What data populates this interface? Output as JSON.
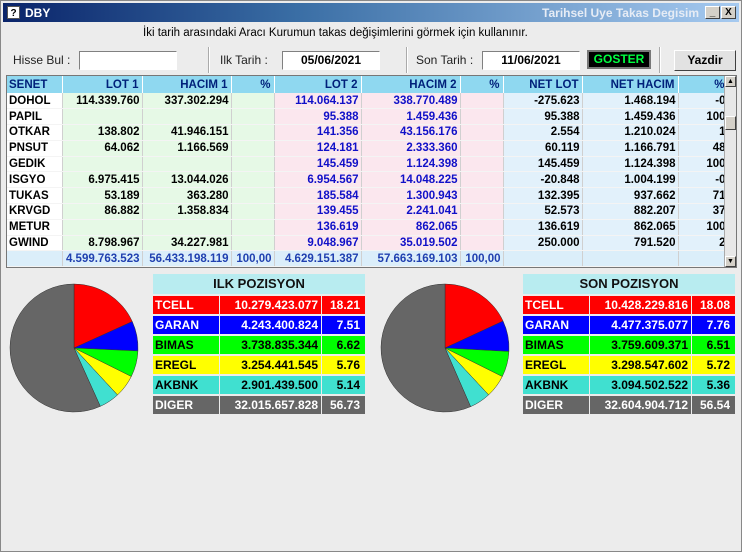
{
  "window": {
    "title": "DBY",
    "title_right": "Tarihsel Uye Takas Degisim",
    "min_glyph": "_",
    "close_glyph": "X",
    "app_icon": "?"
  },
  "hint": "İki tarih arasındaki  Aracı Kurumun takas değişimlerini görmek için kullanınır.",
  "controls": {
    "hisse_label": "Hisse Bul :",
    "hisse_value": "",
    "ilk_tarih_label": "Ilk Tarih :",
    "ilk_tarih_value": "05/06/2021",
    "son_tarih_label": "Son Tarih :",
    "son_tarih_value": "11/06/2021",
    "goster_label": "GOSTER",
    "yazdir_label": "Yazdir"
  },
  "table": {
    "headers": [
      "SENET",
      "LOT 1",
      "HACIM 1",
      "%",
      "LOT 2",
      "HACIM 2",
      "%",
      "NET LOT",
      "NET HACIM",
      "%"
    ],
    "rows": [
      {
        "senet": "DOHOL",
        "lot1": "114.339.760",
        "hacim1": "337.302.294",
        "p1": "",
        "lot2": "114.064.137",
        "hacim2": "338.770.489",
        "p2": "",
        "netlot": "-275.623",
        "nethacim": "1.468.194",
        "np": "-0"
      },
      {
        "senet": "PAPIL",
        "lot1": "",
        "hacim1": "",
        "p1": "",
        "lot2": "95.388",
        "hacim2": "1.459.436",
        "p2": "",
        "netlot": "95.388",
        "nethacim": "1.459.436",
        "np": "100"
      },
      {
        "senet": "OTKAR",
        "lot1": "138.802",
        "hacim1": "41.946.151",
        "p1": "",
        "lot2": "141.356",
        "hacim2": "43.156.176",
        "p2": "",
        "netlot": "2.554",
        "nethacim": "1.210.024",
        "np": "1"
      },
      {
        "senet": "PNSUT",
        "lot1": "64.062",
        "hacim1": "1.166.569",
        "p1": "",
        "lot2": "124.181",
        "hacim2": "2.333.360",
        "p2": "",
        "netlot": "60.119",
        "nethacim": "1.166.791",
        "np": "48"
      },
      {
        "senet": "GEDIK",
        "lot1": "",
        "hacim1": "",
        "p1": "",
        "lot2": "145.459",
        "hacim2": "1.124.398",
        "p2": "",
        "netlot": "145.459",
        "nethacim": "1.124.398",
        "np": "100"
      },
      {
        "senet": "ISGYO",
        "lot1": "6.975.415",
        "hacim1": "13.044.026",
        "p1": "",
        "lot2": "6.954.567",
        "hacim2": "14.048.225",
        "p2": "",
        "netlot": "-20.848",
        "nethacim": "1.004.199",
        "np": "-0"
      },
      {
        "senet": "TUKAS",
        "lot1": "53.189",
        "hacim1": "363.280",
        "p1": "",
        "lot2": "185.584",
        "hacim2": "1.300.943",
        "p2": "",
        "netlot": "132.395",
        "nethacim": "937.662",
        "np": "71"
      },
      {
        "senet": "KRVGD",
        "lot1": "86.882",
        "hacim1": "1.358.834",
        "p1": "",
        "lot2": "139.455",
        "hacim2": "2.241.041",
        "p2": "",
        "netlot": "52.573",
        "nethacim": "882.207",
        "np": "37"
      },
      {
        "senet": "METUR",
        "lot1": "",
        "hacim1": "",
        "p1": "",
        "lot2": "136.619",
        "hacim2": "862.065",
        "p2": "",
        "netlot": "136.619",
        "nethacim": "862.065",
        "np": "100"
      },
      {
        "senet": "GWIND",
        "lot1": "8.798.967",
        "hacim1": "34.227.981",
        "p1": "",
        "lot2": "9.048.967",
        "hacim2": "35.019.502",
        "p2": "",
        "netlot": "250.000",
        "nethacim": "791.520",
        "np": "2"
      }
    ],
    "totals": {
      "senet": "",
      "lot1": "4.599.763.523",
      "hacim1": "56.433.198.119",
      "p1": "100,00",
      "lot2": "4.629.151.387",
      "hacim2": "57.663.169.103",
      "p2": "100,00",
      "netlot": "",
      "nethacim": "",
      "np": ""
    }
  },
  "ilk": {
    "title": "ILK POZISYON",
    "rows": [
      {
        "name": "TCELL",
        "value": "10.279.423.077",
        "pct": "18.21",
        "pct_num": 18.21,
        "bg": "#ff0000",
        "fg": "#ffffff"
      },
      {
        "name": "GARAN",
        "value": "4.243.400.824",
        "pct": "7.51",
        "pct_num": 7.51,
        "bg": "#0000ff",
        "fg": "#ffffff"
      },
      {
        "name": "BIMAS",
        "value": "3.738.835.344",
        "pct": "6.62",
        "pct_num": 6.62,
        "bg": "#00ff00",
        "fg": "#000000"
      },
      {
        "name": "EREGL",
        "value": "3.254.441.545",
        "pct": "5.76",
        "pct_num": 5.76,
        "bg": "#ffff00",
        "fg": "#000000"
      },
      {
        "name": "AKBNK",
        "value": "2.901.439.500",
        "pct": "5.14",
        "pct_num": 5.14,
        "bg": "#40e0d0",
        "fg": "#000000"
      },
      {
        "name": "DIGER",
        "value": "32.015.657.828",
        "pct": "56.73",
        "pct_num": 56.73,
        "bg": "#666666",
        "fg": "#ffffff"
      }
    ]
  },
  "son": {
    "title": "SON POZISYON",
    "rows": [
      {
        "name": "TCELL",
        "value": "10.428.229.816",
        "pct": "18.08",
        "pct_num": 18.08,
        "bg": "#ff0000",
        "fg": "#ffffff"
      },
      {
        "name": "GARAN",
        "value": "4.477.375.077",
        "pct": "7.76",
        "pct_num": 7.76,
        "bg": "#0000ff",
        "fg": "#ffffff"
      },
      {
        "name": "BIMAS",
        "value": "3.759.609.371",
        "pct": "6.51",
        "pct_num": 6.51,
        "bg": "#00ff00",
        "fg": "#000000"
      },
      {
        "name": "EREGL",
        "value": "3.298.547.602",
        "pct": "5.72",
        "pct_num": 5.72,
        "bg": "#ffff00",
        "fg": "#000000"
      },
      {
        "name": "AKBNK",
        "value": "3.094.502.522",
        "pct": "5.36",
        "pct_num": 5.36,
        "bg": "#40e0d0",
        "fg": "#000000"
      },
      {
        "name": "DIGER",
        "value": "32.604.904.712",
        "pct": "56.54",
        "pct_num": 56.54,
        "bg": "#666666",
        "fg": "#ffffff"
      }
    ]
  }
}
